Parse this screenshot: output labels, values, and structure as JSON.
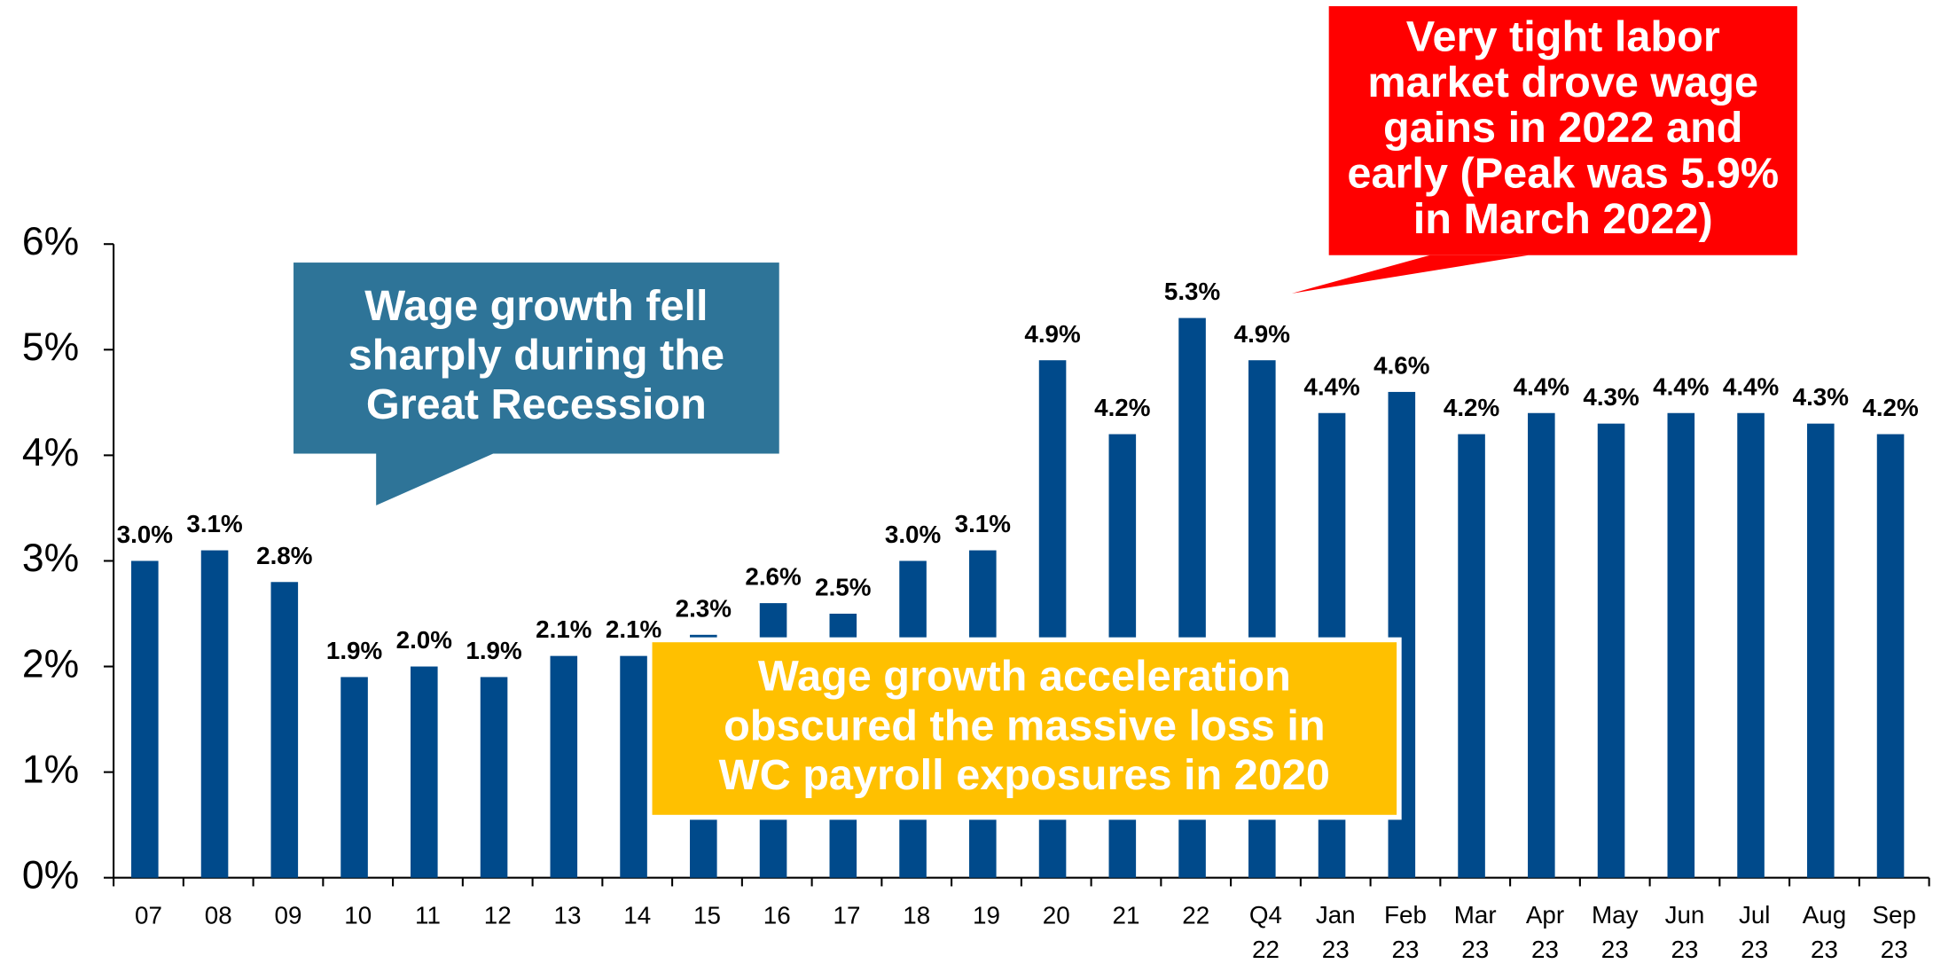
{
  "chart_data": {
    "type": "bar",
    "categories": [
      "07",
      "08",
      "09",
      "10",
      "11",
      "12",
      "13",
      "14",
      "15",
      "16",
      "17",
      "18",
      "19",
      "20",
      "21",
      "22",
      "Q4 22",
      "Jan 23",
      "Feb 23",
      "Mar 23",
      "Apr 23",
      "May 23",
      "Jun 23",
      "Jul 23",
      "Aug 23",
      "Sep 23"
    ],
    "values": [
      3.0,
      3.1,
      2.8,
      1.9,
      2.0,
      1.9,
      2.1,
      2.1,
      2.3,
      2.6,
      2.5,
      3.0,
      3.1,
      4.9,
      4.2,
      5.3,
      4.9,
      4.4,
      4.6,
      4.2,
      4.4,
      4.3,
      4.4,
      4.4,
      4.3,
      4.2
    ],
    "value_labels": [
      "3.0%",
      "3.1%",
      "2.8%",
      "1.9%",
      "2.0%",
      "1.9%",
      "2.1%",
      "2.1%",
      "2.3%",
      "2.6%",
      "2.5%",
      "3.0%",
      "3.1%",
      "4.9%",
      "4.2%",
      "5.3%",
      "4.9%",
      "4.4%",
      "4.6%",
      "4.2%",
      "4.4%",
      "4.3%",
      "4.4%",
      "4.4%",
      "4.3%",
      "4.2%"
    ],
    "color": "#004a8b",
    "ylim": [
      0,
      6
    ],
    "yticks": [
      {
        "value": 0,
        "label": "0%"
      },
      {
        "value": 1,
        "label": "1%"
      },
      {
        "value": 2,
        "label": "2%"
      },
      {
        "value": 3,
        "label": "3%"
      },
      {
        "value": 4,
        "label": "4%"
      },
      {
        "value": 5,
        "label": "5%"
      },
      {
        "value": 6,
        "label": "6%"
      }
    ],
    "annotations": [
      {
        "lines": [
          "Wage growth fell",
          "sharply during the",
          "Great Recession"
        ],
        "color": "#2e7498"
      },
      {
        "lines": [
          "Very tight labor",
          "market drove wage",
          "gains in 2022 and",
          "early (Peak was 5.9%",
          "in March 2022)"
        ],
        "color": "#ff0000"
      },
      {
        "lines": [
          "Wage growth acceleration",
          "obscured the massive loss in",
          "WC payroll exposures in 2020"
        ],
        "color": "#ffc000"
      }
    ]
  }
}
